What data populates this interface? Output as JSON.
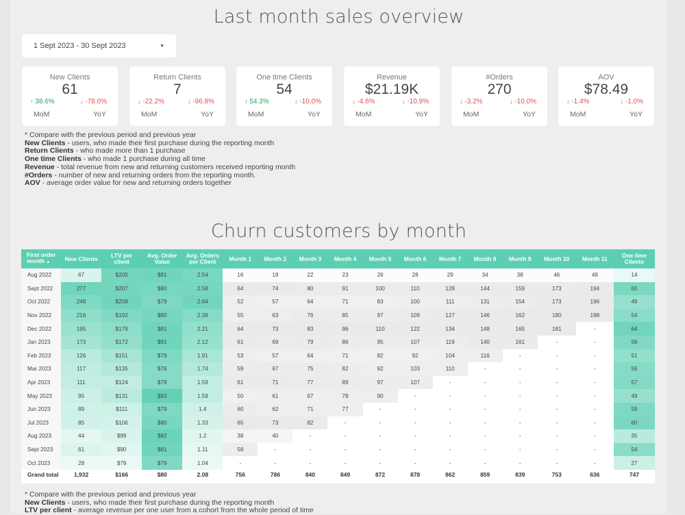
{
  "header": {
    "title": "Last month sales overview"
  },
  "date_range": {
    "label": "1 Sept 2023 - 30 Sept 2023",
    "caret": "▼"
  },
  "kpis": [
    {
      "label": "New Clients",
      "value": "61",
      "mom": "38.6%",
      "mom_dir": "up",
      "yoy": "-78.0%",
      "yoy_dir": "down",
      "mom_label": "MoM",
      "yoy_label": "YoY"
    },
    {
      "label": "Return Clients",
      "value": "7",
      "mom": "-22.2%",
      "mom_dir": "down",
      "yoy": "-96.8%",
      "yoy_dir": "down",
      "mom_label": "MoM",
      "yoy_label": "YoY"
    },
    {
      "label": "One time Clients",
      "value": "54",
      "mom": "54.3%",
      "mom_dir": "up",
      "yoy": "-10.0%",
      "yoy_dir": "down",
      "mom_label": "MoM",
      "yoy_label": "YoY"
    },
    {
      "label": "Revenue",
      "value": "$21.19K",
      "mom": "-4.6%",
      "mom_dir": "down",
      "yoy": "-10.9%",
      "yoy_dir": "down",
      "mom_label": "MoM",
      "yoy_label": "YoY"
    },
    {
      "label": "#Orders",
      "value": "270",
      "mom": "-3.2%",
      "mom_dir": "down",
      "yoy": "-10.0%",
      "yoy_dir": "down",
      "mom_label": "MoM",
      "yoy_label": "YoY"
    },
    {
      "label": "AOV",
      "value": "$78.49",
      "mom": "-1.4%",
      "mom_dir": "down",
      "yoy": "-1.0%",
      "yoy_dir": "down",
      "mom_label": "MoM",
      "yoy_label": "YoY"
    }
  ],
  "notes1": [
    {
      "term": "",
      "text": "* Compare with the previous period and previous year"
    },
    {
      "term": "New Clients",
      "text": " - users, who made their first purchase during the reporting month"
    },
    {
      "term": "Return Clients",
      "text": " - who made more than 1 purchase"
    },
    {
      "term": "One time Clients",
      "text": " - who made 1 purchase during all time"
    },
    {
      "term": "Revenue",
      "text": " - total revenue from new and returning customers received reporting month"
    },
    {
      "term": "#Orders",
      "text": " - number of new and returning orders from the reporting month."
    },
    {
      "term": "AOV",
      "text": " - average order value for new and returning orders together"
    }
  ],
  "churn": {
    "title": "Churn customers by month",
    "sort_icon": "▲",
    "headers": [
      "First order month",
      "New Clients",
      "LTV per client",
      "Avg. Order Value",
      "Avg. Orders per Client",
      "Month 1",
      "Month 2",
      "Month 3",
      "Month 4",
      "Month 5",
      "Month 6",
      "Month 7",
      "Month 8",
      "Month 9",
      "Month 10",
      "Month 11",
      "One time Clients"
    ],
    "rows": [
      [
        "Aug 2022",
        "67",
        "$205",
        "$81",
        "2.54",
        "16",
        "19",
        "22",
        "23",
        "26",
        "28",
        "29",
        "34",
        "38",
        "46",
        "48",
        "14"
      ],
      [
        "Sept 2022",
        "277",
        "$207",
        "$80",
        "2.58",
        "64",
        "74",
        "80",
        "91",
        "100",
        "110",
        "128",
        "144",
        "159",
        "173",
        "194",
        "60"
      ],
      [
        "Oct 2022",
        "248",
        "$208",
        "$79",
        "2.64",
        "52",
        "57",
        "64",
        "71",
        "83",
        "100",
        "111",
        "131",
        "154",
        "173",
        "196",
        "49"
      ],
      [
        "Nov 2022",
        "216",
        "$192",
        "$80",
        "2.39",
        "55",
        "63",
        "76",
        "85",
        "97",
        "109",
        "127",
        "146",
        "162",
        "180",
        "198",
        "54"
      ],
      [
        "Dec 2022",
        "195",
        "$179",
        "$81",
        "2.21",
        "64",
        "73",
        "83",
        "96",
        "110",
        "122",
        "134",
        "148",
        "165",
        "181",
        "-",
        "64"
      ],
      [
        "Jan 2023",
        "173",
        "$172",
        "$81",
        "2.12",
        "61",
        "69",
        "79",
        "86",
        "95",
        "107",
        "119",
        "140",
        "161",
        "-",
        "-",
        "58"
      ],
      [
        "Feb 2023",
        "126",
        "$151",
        "$79",
        "1.91",
        "53",
        "57",
        "64",
        "71",
        "82",
        "92",
        "104",
        "116",
        "-",
        "-",
        "-",
        "51"
      ],
      [
        "Mar 2023",
        "117",
        "$135",
        "$78",
        "1.74",
        "59",
        "67",
        "75",
        "82",
        "92",
        "103",
        "110",
        "-",
        "-",
        "-",
        "-",
        "56"
      ],
      [
        "Apr 2023",
        "111",
        "$124",
        "$78",
        "1.59",
        "61",
        "71",
        "77",
        "89",
        "97",
        "107",
        "-",
        "-",
        "-",
        "-",
        "-",
        "57"
      ],
      [
        "May 2023",
        "95",
        "$131",
        "$83",
        "1.59",
        "50",
        "61",
        "67",
        "78",
        "90",
        "-",
        "-",
        "-",
        "-",
        "-",
        "-",
        "49"
      ],
      [
        "Jun 2023",
        "89",
        "$111",
        "$79",
        "1.4",
        "60",
        "62",
        "71",
        "77",
        "-",
        "-",
        "-",
        "-",
        "-",
        "-",
        "-",
        "59"
      ],
      [
        "Jul 2023",
        "85",
        "$106",
        "$80",
        "1.33",
        "65",
        "73",
        "82",
        "-",
        "-",
        "-",
        "-",
        "-",
        "-",
        "-",
        "-",
        "60"
      ],
      [
        "Aug 2023",
        "44",
        "$99",
        "$82",
        "1.2",
        "38",
        "40",
        "-",
        "-",
        "-",
        "-",
        "-",
        "-",
        "-",
        "-",
        "-",
        "35"
      ],
      [
        "Sept 2023",
        "61",
        "$90",
        "$81",
        "1.11",
        "58",
        "-",
        "-",
        "-",
        "-",
        "-",
        "-",
        "-",
        "-",
        "-",
        "-",
        "54"
      ],
      [
        "Oct 2023",
        "28",
        "$79",
        "$79",
        "1.04",
        "-",
        "-",
        "-",
        "-",
        "-",
        "-",
        "-",
        "-",
        "-",
        "-",
        "-",
        "27"
      ]
    ],
    "grand_total": [
      "Grand total",
      "1,932",
      "$166",
      "$80",
      "2.08",
      "756",
      "786",
      "840",
      "849",
      "872",
      "878",
      "862",
      "859",
      "839",
      "753",
      "636",
      "747"
    ]
  },
  "notes2": [
    {
      "term": "",
      "text": "* Compare with the previous period and previous year"
    },
    {
      "term": "New Clients",
      "text": " - users, who made their first purchase during the reporting month"
    },
    {
      "term": "LTV per client",
      "text": " - average revenue per one user from a cohort from the whole period of time"
    }
  ],
  "colors": {
    "header": "#5ccfb2",
    "up": "#2e9e5b",
    "down": "#d9534f",
    "background": "#eeeeee"
  }
}
